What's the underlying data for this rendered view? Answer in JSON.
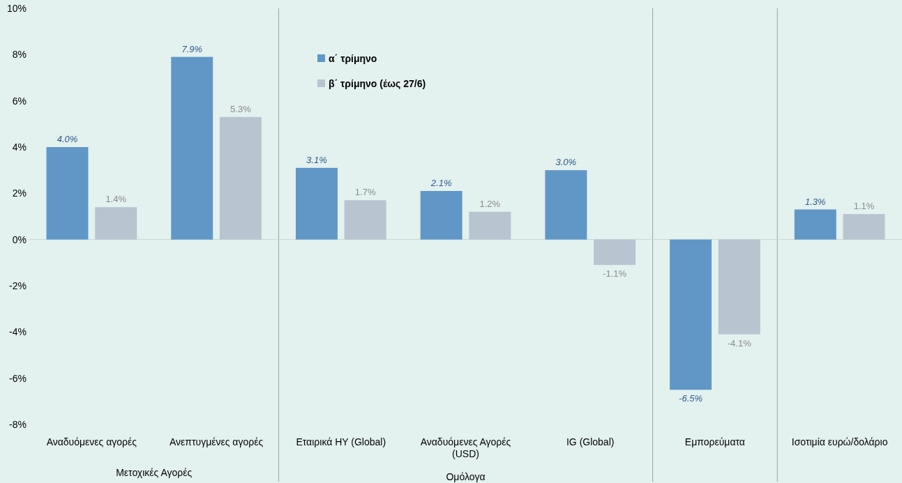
{
  "chart_data": {
    "type": "bar",
    "categories": [
      "Αναδυόμενες αγορές",
      "Ανεπτυγμένες αγορές",
      "Εταιρικά HY (Global)",
      "Αναδυόμενες Αγορές (USD)",
      "IG (Global)",
      "Εμπορεύματα",
      "Ισοτιμία ευρώ/δολάριο"
    ],
    "series": [
      {
        "name": "α΄ τρίμηνο",
        "color": "#6097c6",
        "values": [
          4.0,
          7.9,
          3.1,
          2.1,
          3.0,
          -6.5,
          1.3
        ],
        "value_labels": [
          "4.0%",
          "7.9%",
          "3.1%",
          "2.1%",
          "3.0%",
          "-6.5%",
          "1.3%"
        ]
      },
      {
        "name": "β΄ τρίμηνο (έως 27/6)",
        "color": "#b8c4d0",
        "values": [
          1.4,
          5.3,
          1.7,
          1.2,
          -1.1,
          -4.1,
          1.1
        ],
        "value_labels": [
          "1.4%",
          "5.3%",
          "1.7%",
          "1.2%",
          "-1.1%",
          "-4.1%",
          "1.1%"
        ]
      }
    ],
    "ylim": [
      -8,
      10
    ],
    "yticks": [
      {
        "value": -8,
        "label": "-8%"
      },
      {
        "value": -6,
        "label": "-6%"
      },
      {
        "value": -4,
        "label": "-4%"
      },
      {
        "value": -2,
        "label": "-2%"
      },
      {
        "value": 0,
        "label": "0%"
      },
      {
        "value": 2,
        "label": "2%"
      },
      {
        "value": 4,
        "label": "4%"
      },
      {
        "value": 6,
        "label": "6%"
      },
      {
        "value": 8,
        "label": "8%"
      },
      {
        "value": 10,
        "label": "10%"
      }
    ],
    "annotations": [
      "Μετοχικές Αγορές",
      "Ομόλογα"
    ],
    "legend": "top",
    "grid": false
  }
}
